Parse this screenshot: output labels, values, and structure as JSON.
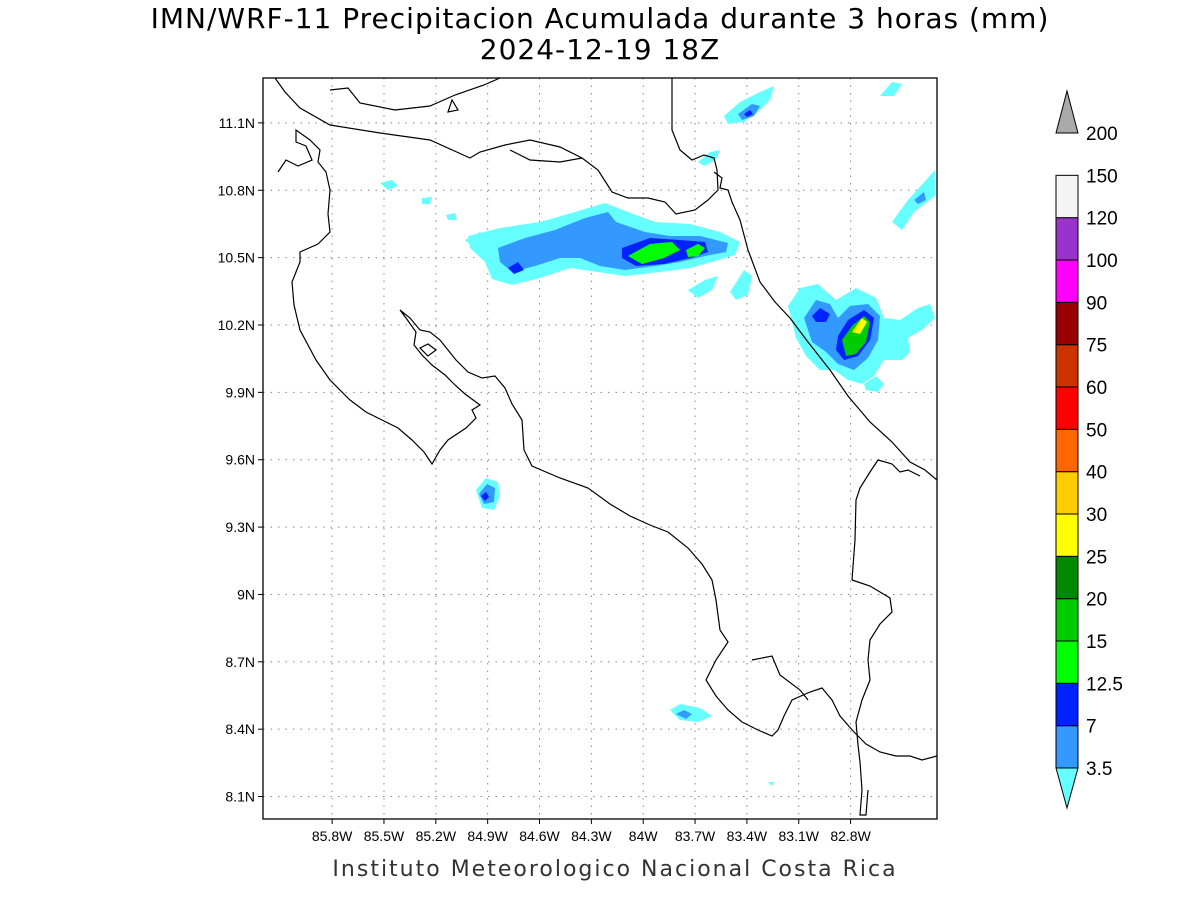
{
  "header": {
    "title_line1": "IMN/WRF-11 Precipitacion Acumulada durante 3 horas (mm)",
    "title_line2": "2024-12-19 18Z"
  },
  "footer": {
    "credit": "Instituto Meteorologico Nacional Costa Rica"
  },
  "map": {
    "lon_range": [
      -86.2,
      -82.3
    ],
    "lat_range": [
      8.0,
      11.3
    ],
    "x_ticks": [
      {
        "value": -85.8,
        "label": "85.8W"
      },
      {
        "value": -85.5,
        "label": "85.5W"
      },
      {
        "value": -85.2,
        "label": "85.2W"
      },
      {
        "value": -84.9,
        "label": "84.9W"
      },
      {
        "value": -84.6,
        "label": "84.6W"
      },
      {
        "value": -84.3,
        "label": "84.3W"
      },
      {
        "value": -84.0,
        "label": "84W"
      },
      {
        "value": -83.7,
        "label": "83.7W"
      },
      {
        "value": -83.4,
        "label": "83.4W"
      },
      {
        "value": -83.1,
        "label": "83.1W"
      },
      {
        "value": -82.8,
        "label": "82.8W"
      }
    ],
    "y_ticks": [
      {
        "value": 11.1,
        "label": "11.1N"
      },
      {
        "value": 10.8,
        "label": "10.8N"
      },
      {
        "value": 10.5,
        "label": "10.5N"
      },
      {
        "value": 10.2,
        "label": "10.2N"
      },
      {
        "value": 9.9,
        "label": "9.9N"
      },
      {
        "value": 9.6,
        "label": "9.6N"
      },
      {
        "value": 9.3,
        "label": "9.3N"
      },
      {
        "value": 9.0,
        "label": "9N"
      },
      {
        "value": 8.7,
        "label": "8.7N"
      },
      {
        "value": 8.4,
        "label": "8.4N"
      },
      {
        "value": 8.1,
        "label": "8.1N"
      }
    ],
    "grid": "dotted"
  },
  "colorbar": {
    "units": "mm",
    "levels": [
      "3.5",
      "7",
      "12.5",
      "15",
      "20",
      "25",
      "30",
      "40",
      "50",
      "60",
      "75",
      "90",
      "100",
      "120",
      "150",
      "200"
    ],
    "colors": [
      "#66ffff",
      "#3399ff",
      "#0022ff",
      "#00ff00",
      "#00cc00",
      "#008800",
      "#ffff00",
      "#ffcc00",
      "#ff6600",
      "#ff0000",
      "#cc3300",
      "#990000",
      "#ff00ff",
      "#9933cc",
      "#f4f4f4",
      "#aaaaaa"
    ],
    "extend": "both"
  },
  "precip_cells": [
    {
      "name": "caribe-norte-band",
      "lon": -84.1,
      "lat": 10.58,
      "max_class": "20"
    },
    {
      "name": "talamanca-caribe-cell",
      "lon": -82.88,
      "lat": 10.13,
      "max_class": "30"
    },
    {
      "name": "nicoya-cell",
      "lon": -84.86,
      "lat": 9.45,
      "max_class": "12.5"
    },
    {
      "name": "nicaragua-coast-cell",
      "lon": -83.45,
      "lat": 11.13,
      "max_class": "12.5"
    },
    {
      "name": "osa-south-cell",
      "lon": -83.75,
      "lat": 8.47,
      "max_class": "7"
    }
  ]
}
